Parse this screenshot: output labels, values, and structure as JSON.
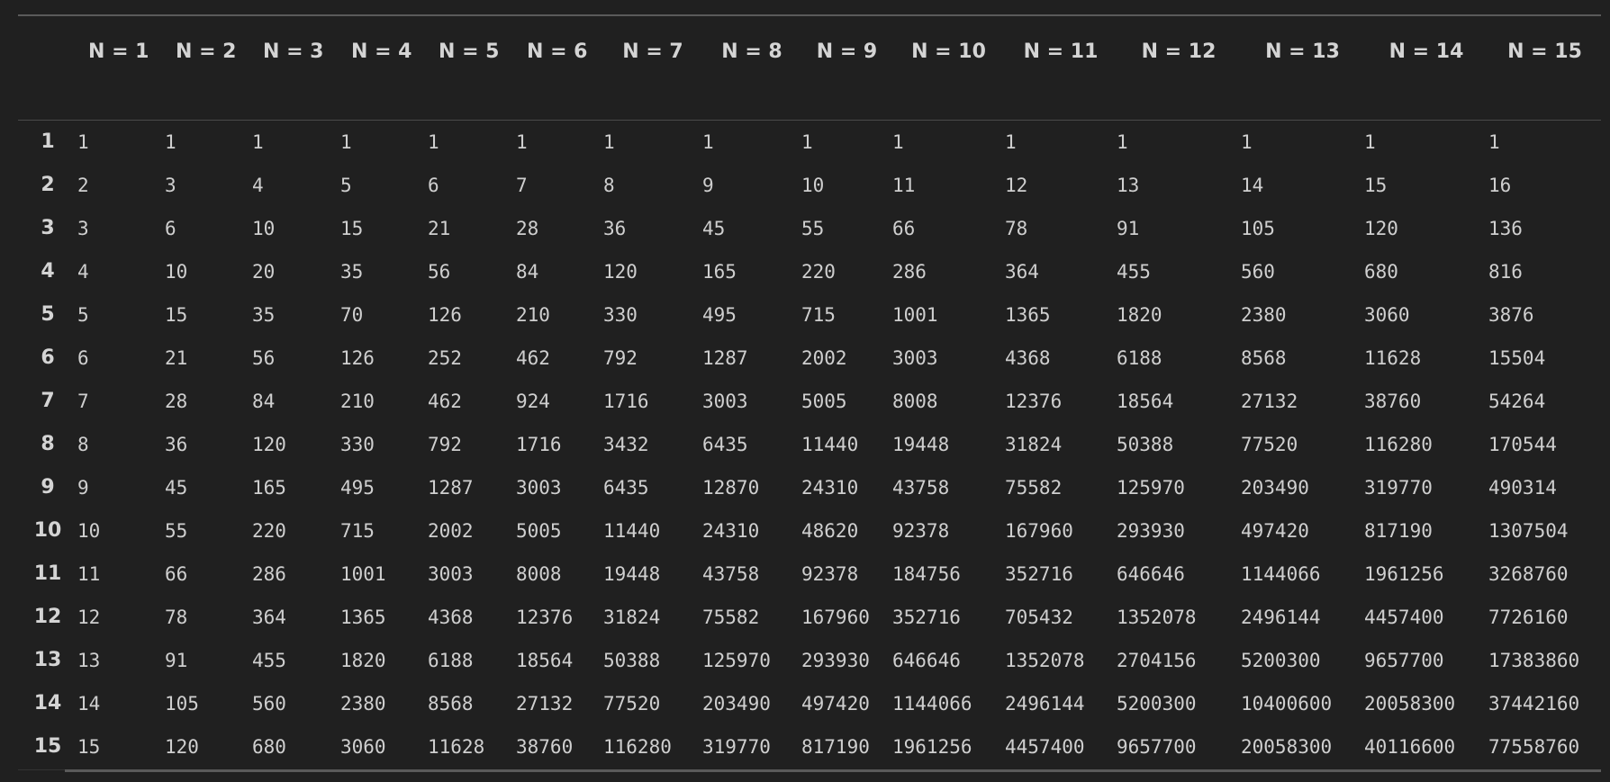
{
  "table": {
    "corner": "",
    "columns": [
      "N = 1",
      "N = 2",
      "N = 3",
      "N = 4",
      "N = 5",
      "N = 6",
      "N = 7",
      "N = 8",
      "N = 9",
      "N = 10",
      "N = 11",
      "N = 12",
      "N = 13",
      "N = 14",
      "N = 15"
    ],
    "rows": [
      {
        "label": "1",
        "values": [
          "1",
          "1",
          "1",
          "1",
          "1",
          "1",
          "1",
          "1",
          "1",
          "1",
          "1",
          "1",
          "1",
          "1",
          "1"
        ]
      },
      {
        "label": "2",
        "values": [
          "2",
          "3",
          "4",
          "5",
          "6",
          "7",
          "8",
          "9",
          "10",
          "11",
          "12",
          "13",
          "14",
          "15",
          "16"
        ]
      },
      {
        "label": "3",
        "values": [
          "3",
          "6",
          "10",
          "15",
          "21",
          "28",
          "36",
          "45",
          "55",
          "66",
          "78",
          "91",
          "105",
          "120",
          "136"
        ]
      },
      {
        "label": "4",
        "values": [
          "4",
          "10",
          "20",
          "35",
          "56",
          "84",
          "120",
          "165",
          "220",
          "286",
          "364",
          "455",
          "560",
          "680",
          "816"
        ]
      },
      {
        "label": "5",
        "values": [
          "5",
          "15",
          "35",
          "70",
          "126",
          "210",
          "330",
          "495",
          "715",
          "1001",
          "1365",
          "1820",
          "2380",
          "3060",
          "3876"
        ]
      },
      {
        "label": "6",
        "values": [
          "6",
          "21",
          "56",
          "126",
          "252",
          "462",
          "792",
          "1287",
          "2002",
          "3003",
          "4368",
          "6188",
          "8568",
          "11628",
          "15504"
        ]
      },
      {
        "label": "7",
        "values": [
          "7",
          "28",
          "84",
          "210",
          "462",
          "924",
          "1716",
          "3003",
          "5005",
          "8008",
          "12376",
          "18564",
          "27132",
          "38760",
          "54264"
        ]
      },
      {
        "label": "8",
        "values": [
          "8",
          "36",
          "120",
          "330",
          "792",
          "1716",
          "3432",
          "6435",
          "11440",
          "19448",
          "31824",
          "50388",
          "77520",
          "116280",
          "170544"
        ]
      },
      {
        "label": "9",
        "values": [
          "9",
          "45",
          "165",
          "495",
          "1287",
          "3003",
          "6435",
          "12870",
          "24310",
          "43758",
          "75582",
          "125970",
          "203490",
          "319770",
          "490314"
        ]
      },
      {
        "label": "10",
        "values": [
          "10",
          "55",
          "220",
          "715",
          "2002",
          "5005",
          "11440",
          "24310",
          "48620",
          "92378",
          "167960",
          "293930",
          "497420",
          "817190",
          "1307504"
        ]
      },
      {
        "label": "11",
        "values": [
          "11",
          "66",
          "286",
          "1001",
          "3003",
          "8008",
          "19448",
          "43758",
          "92378",
          "184756",
          "352716",
          "646646",
          "1144066",
          "1961256",
          "3268760"
        ]
      },
      {
        "label": "12",
        "values": [
          "12",
          "78",
          "364",
          "1365",
          "4368",
          "12376",
          "31824",
          "75582",
          "167960",
          "352716",
          "705432",
          "1352078",
          "2496144",
          "4457400",
          "7726160"
        ]
      },
      {
        "label": "13",
        "values": [
          "13",
          "91",
          "455",
          "1820",
          "6188",
          "18564",
          "50388",
          "125970",
          "293930",
          "646646",
          "1352078",
          "2704156",
          "5200300",
          "9657700",
          "17383860"
        ]
      },
      {
        "label": "14",
        "values": [
          "14",
          "105",
          "560",
          "2380",
          "8568",
          "27132",
          "77520",
          "203490",
          "497420",
          "1144066",
          "2496144",
          "5200300",
          "10400600",
          "20058300",
          "37442160"
        ]
      },
      {
        "label": "15",
        "values": [
          "15",
          "120",
          "680",
          "3060",
          "11628",
          "38760",
          "116280",
          "319770",
          "817190",
          "1961256",
          "4457400",
          "9657700",
          "20058300",
          "40116600",
          "77558760"
        ]
      }
    ]
  }
}
